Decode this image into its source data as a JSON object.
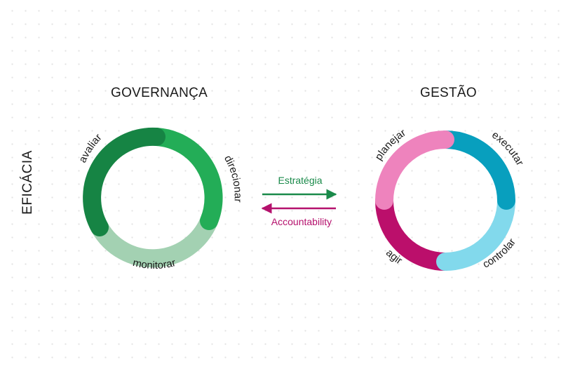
{
  "governanca": {
    "title": "GOVERNANÇA",
    "stages": [
      {
        "label": "avaliar",
        "color": "#168444"
      },
      {
        "label": "direcionar",
        "color": "#23ad57"
      },
      {
        "label": "monitorar",
        "color": "#a3d1b2"
      }
    ]
  },
  "gestao": {
    "title": "GESTÃO",
    "stages": [
      {
        "label": "planejar",
        "color": "#ee83bd"
      },
      {
        "label": "executar",
        "color": "#089fbe"
      },
      {
        "label": "controlar",
        "color": "#82d9ec"
      },
      {
        "label": "agir",
        "color": "#bb0f6b"
      }
    ]
  },
  "side_label": "EFICÁCIA",
  "arrows": {
    "strategy": {
      "label": "Estratégia",
      "color": "#1a8a4a"
    },
    "accountability": {
      "label": "Accountability",
      "color": "#b5116d"
    }
  }
}
